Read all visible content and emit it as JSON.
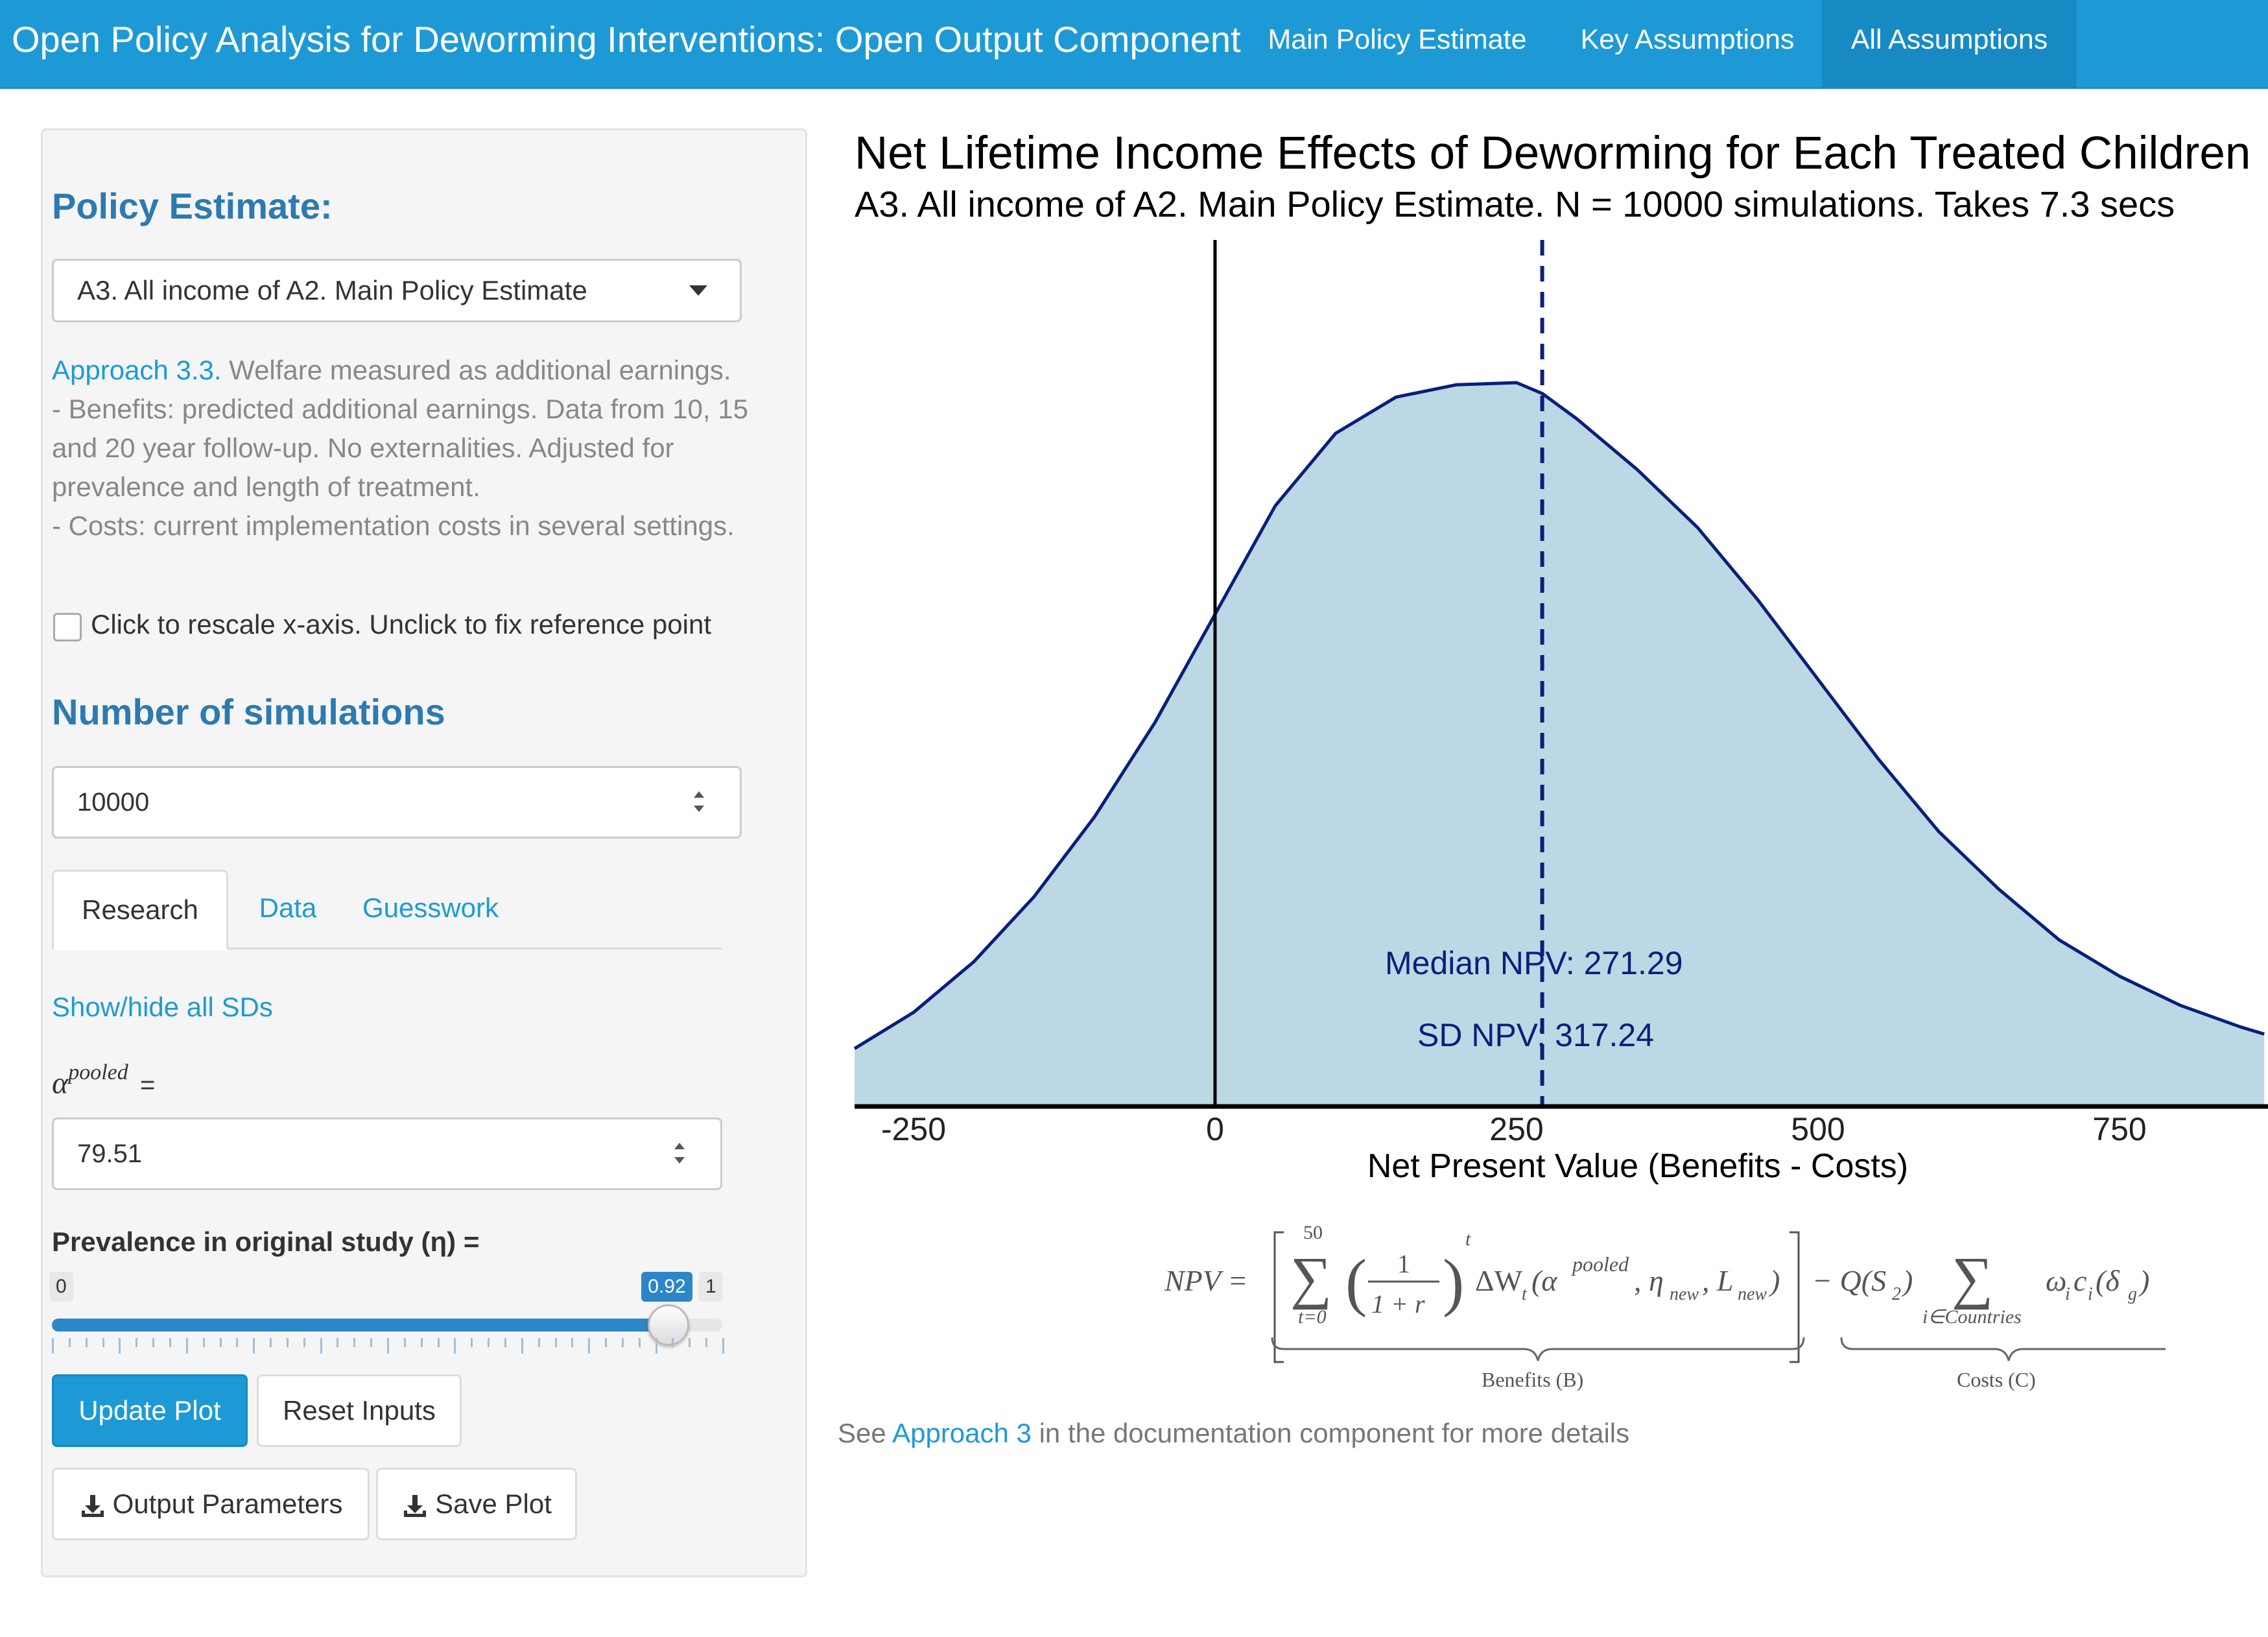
{
  "navbar": {
    "title": "Open Policy Analysis for Deworming Interventions: Open Output Component",
    "links": [
      "Main Policy Estimate",
      "Key Assumptions",
      "All Assumptions"
    ],
    "active": "All Assumptions"
  },
  "sidebar": {
    "policy_title": "Policy Estimate:",
    "policy_select": "A3. All income of A2. Main Policy Estimate",
    "description": {
      "approach_link": "Approach 3.3.",
      "line1": " Welfare measured as additional earnings.",
      "line2": "- Benefits: predicted additional earnings. Data from 10, 15 and 20 year follow-up. No externalities. Adjusted for prevalence and length of treatment.",
      "line3": "- Costs: current implementation costs in several settings."
    },
    "rescale_checkbox": {
      "label": "Click to rescale x-axis. Unclick to fix reference point",
      "checked": false
    },
    "sims_title": "Number of simulations",
    "sims_value": "10000",
    "tabs": [
      "Research",
      "Data",
      "Guesswork"
    ],
    "active_tab": "Research",
    "show_hide_sds": "Show/hide all SDs",
    "alpha_label": {
      "symbol": "α",
      "superscript": "pooled",
      "equals": "="
    },
    "alpha_value": "79.51",
    "prevalence_label": "Prevalence in original study (η) =",
    "slider": {
      "min": "0",
      "max": "1",
      "value": "0.92",
      "value_num": 0.92
    },
    "buttons": {
      "update": "Update Plot",
      "reset": "Reset Inputs",
      "output_params": "Output Parameters",
      "save_plot": "Save Plot"
    }
  },
  "plot": {
    "title": "Net Lifetime Income Effects of Deworming for Each Treated Children",
    "subtitle": "A3. All income of A2. Main Policy Estimate. N = 10000 simulations. Takes 7.3 secs",
    "annotations": {
      "median": "Median NPV:  271.29",
      "sd": "SD NPV:  317.24"
    },
    "formula": {
      "lhs": "NPV =",
      "sum_upper": "50",
      "sum_lower": "t=0",
      "frac_num": "1",
      "frac_den": "1 + r",
      "power": "t",
      "benefit_term": "ΔW",
      "benefit_sub": "t",
      "benefit_args": "(α",
      "benefit_sup": "pooled",
      "benefit_rest": ", η",
      "eta_sub": "new",
      "comma_L": ", L",
      "L_sub": "new",
      "close": ")",
      "minus_q": "− Q(S",
      "q_sub": "2",
      "q_close": ")",
      "cost_sum_lower": "i∈Countries",
      "cost_term": "ω",
      "cost_i": "i",
      "cost_c": "c",
      "cost_delta": "(δ",
      "cost_g": "g",
      "cost_close": ")",
      "benefits_label": "Benefits (B)",
      "costs_label": "Costs (C)"
    },
    "footer": {
      "prefix": "See ",
      "link": "Approach 3",
      "suffix": " in the documentation component for more details"
    }
  },
  "chart_data": {
    "type": "area",
    "title": "Net Lifetime Income Effects of Deworming for Each Treated Children",
    "subtitle": "A3. All income of A2. Main Policy Estimate. N = 10000 simulations. Takes 7.3 secs",
    "xlabel": "Net Present Value (Benefits -  Costs)",
    "ylabel": "",
    "x_ticks": [
      -250,
      0,
      250,
      500,
      750
    ],
    "xlim": [
      -300,
      870
    ],
    "grid": false,
    "fill_color": "#bcd8e5",
    "line_color": "#0a1f7a",
    "reference_line_x": 0,
    "median_line_x": 271.29,
    "series": [
      {
        "x": [
          -300,
          -250,
          -200,
          -150,
          -100,
          -50,
          0,
          50,
          100,
          150,
          200,
          250,
          271.29,
          300,
          350,
          400,
          450,
          500,
          550,
          600,
          650,
          700,
          750,
          800,
          850,
          870
        ],
        "density": [
          0.08,
          0.13,
          0.2,
          0.29,
          0.4,
          0.53,
          0.68,
          0.83,
          0.93,
          0.98,
          0.997,
          1.0,
          0.985,
          0.95,
          0.88,
          0.8,
          0.7,
          0.59,
          0.48,
          0.38,
          0.3,
          0.23,
          0.18,
          0.14,
          0.11,
          0.1
        ]
      }
    ]
  }
}
